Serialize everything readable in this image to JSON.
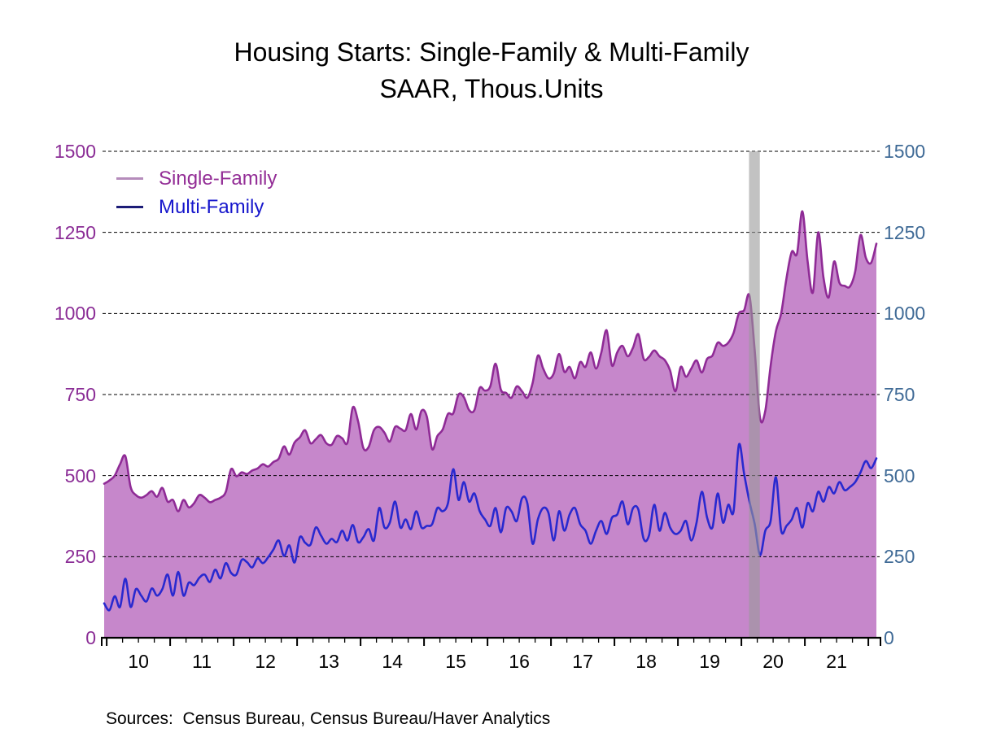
{
  "title": {
    "line1": "Housing Starts: Single-Family & Multi-Family",
    "line2": "SAAR, Thous.Units"
  },
  "legend": [
    {
      "label": "Single-Family",
      "swatch_color": "#b58cbb",
      "text_color": "#932d96"
    },
    {
      "label": "Multi-Family",
      "swatch_color": "#1c1c77",
      "text_color": "#1616cc"
    }
  ],
  "source_note": "Sources:  Census Bureau, Census Bureau/Haver Analytics",
  "axes": {
    "left_label_color": "#8b2d96",
    "right_label_color": "#3f6a96",
    "yticks": [
      0,
      250,
      500,
      750,
      1000,
      1250,
      1500
    ],
    "xtick_years": [
      2010,
      2011,
      2012,
      2013,
      2014,
      2015,
      2016,
      2017,
      2018,
      2019,
      2020,
      2021
    ],
    "xtick_labels": [
      "10",
      "11",
      "12",
      "13",
      "14",
      "15",
      "16",
      "17",
      "18",
      "19",
      "20",
      "21"
    ],
    "gridline_color": "#000000",
    "axis_color": "#000000"
  },
  "recession_band": {
    "from": 2020.12,
    "to": 2020.29,
    "color": "#9a9a9a",
    "opacity": 0.6
  },
  "chart_data": {
    "type": "area",
    "x_unit": "year, monthly frequency",
    "x_start": 2009.96,
    "x_step": 0.0833333,
    "xlim": [
      2009.96,
      2022.127
    ],
    "ylim": [
      0,
      1500
    ],
    "grid": true,
    "legend_position": "top-left inside",
    "series": [
      {
        "name": "Single-Family",
        "style": "area",
        "line_color": "#8f2b96",
        "fill_color": "#c687cb",
        "values": [
          475,
          485,
          500,
          535,
          560,
          465,
          440,
          432,
          440,
          452,
          435,
          462,
          420,
          425,
          390,
          425,
          402,
          415,
          440,
          432,
          418,
          425,
          432,
          450,
          520,
          498,
          510,
          505,
          516,
          522,
          535,
          528,
          542,
          552,
          590,
          565,
          602,
          618,
          640,
          600,
          612,
          625,
          600,
          595,
          622,
          615,
          602,
          710,
          668,
          585,
          588,
          640,
          650,
          632,
          605,
          650,
          645,
          640,
          690,
          642,
          700,
          682,
          582,
          622,
          642,
          690,
          692,
          750,
          742,
          702,
          702,
          770,
          762,
          775,
          845,
          765,
          755,
          740,
          775,
          760,
          740,
          785,
          870,
          830,
          800,
          815,
          875,
          820,
          835,
          800,
          850,
          835,
          880,
          830,
          880,
          948,
          840,
          880,
          900,
          868,
          895,
          936,
          860,
          866,
          886,
          868,
          856,
          824,
          760,
          835,
          805,
          830,
          855,
          818,
          860,
          870,
          910,
          900,
          910,
          940,
          1000,
          1010,
          1055,
          885,
          678,
          700,
          838,
          945,
          1000,
          1108,
          1190,
          1185,
          1315,
          1160,
          1065,
          1250,
          1110,
          1050,
          1160,
          1095,
          1085,
          1083,
          1130,
          1242,
          1172,
          1156,
          1215
        ]
      },
      {
        "name": "Multi-Family",
        "style": "line",
        "line_color": "#2929cf",
        "values": [
          106,
          85,
          128,
          95,
          182,
          95,
          150,
          130,
          112,
          152,
          130,
          150,
          195,
          130,
          203,
          130,
          170,
          162,
          185,
          195,
          172,
          210,
          183,
          230,
          200,
          195,
          240,
          233,
          217,
          245,
          230,
          248,
          272,
          300,
          252,
          285,
          232,
          310,
          293,
          287,
          340,
          315,
          290,
          305,
          295,
          330,
          300,
          348,
          295,
          310,
          335,
          300,
          400,
          340,
          355,
          420,
          340,
          365,
          335,
          390,
          340,
          345,
          350,
          400,
          390,
          415,
          520,
          425,
          480,
          420,
          445,
          390,
          365,
          345,
          400,
          325,
          400,
          390,
          360,
          430,
          415,
          290,
          365,
          400,
          385,
          300,
          390,
          330,
          380,
          400,
          350,
          330,
          290,
          330,
          360,
          320,
          370,
          380,
          420,
          350,
          400,
          395,
          305,
          315,
          410,
          330,
          385,
          340,
          320,
          330,
          360,
          300,
          355,
          450,
          370,
          340,
          445,
          355,
          410,
          390,
          595,
          505,
          420,
          350,
          255,
          330,
          360,
          495,
          330,
          345,
          365,
          400,
          340,
          415,
          390,
          450,
          420,
          465,
          445,
          480,
          455,
          465,
          480,
          510,
          545,
          523,
          553
        ]
      }
    ]
  }
}
